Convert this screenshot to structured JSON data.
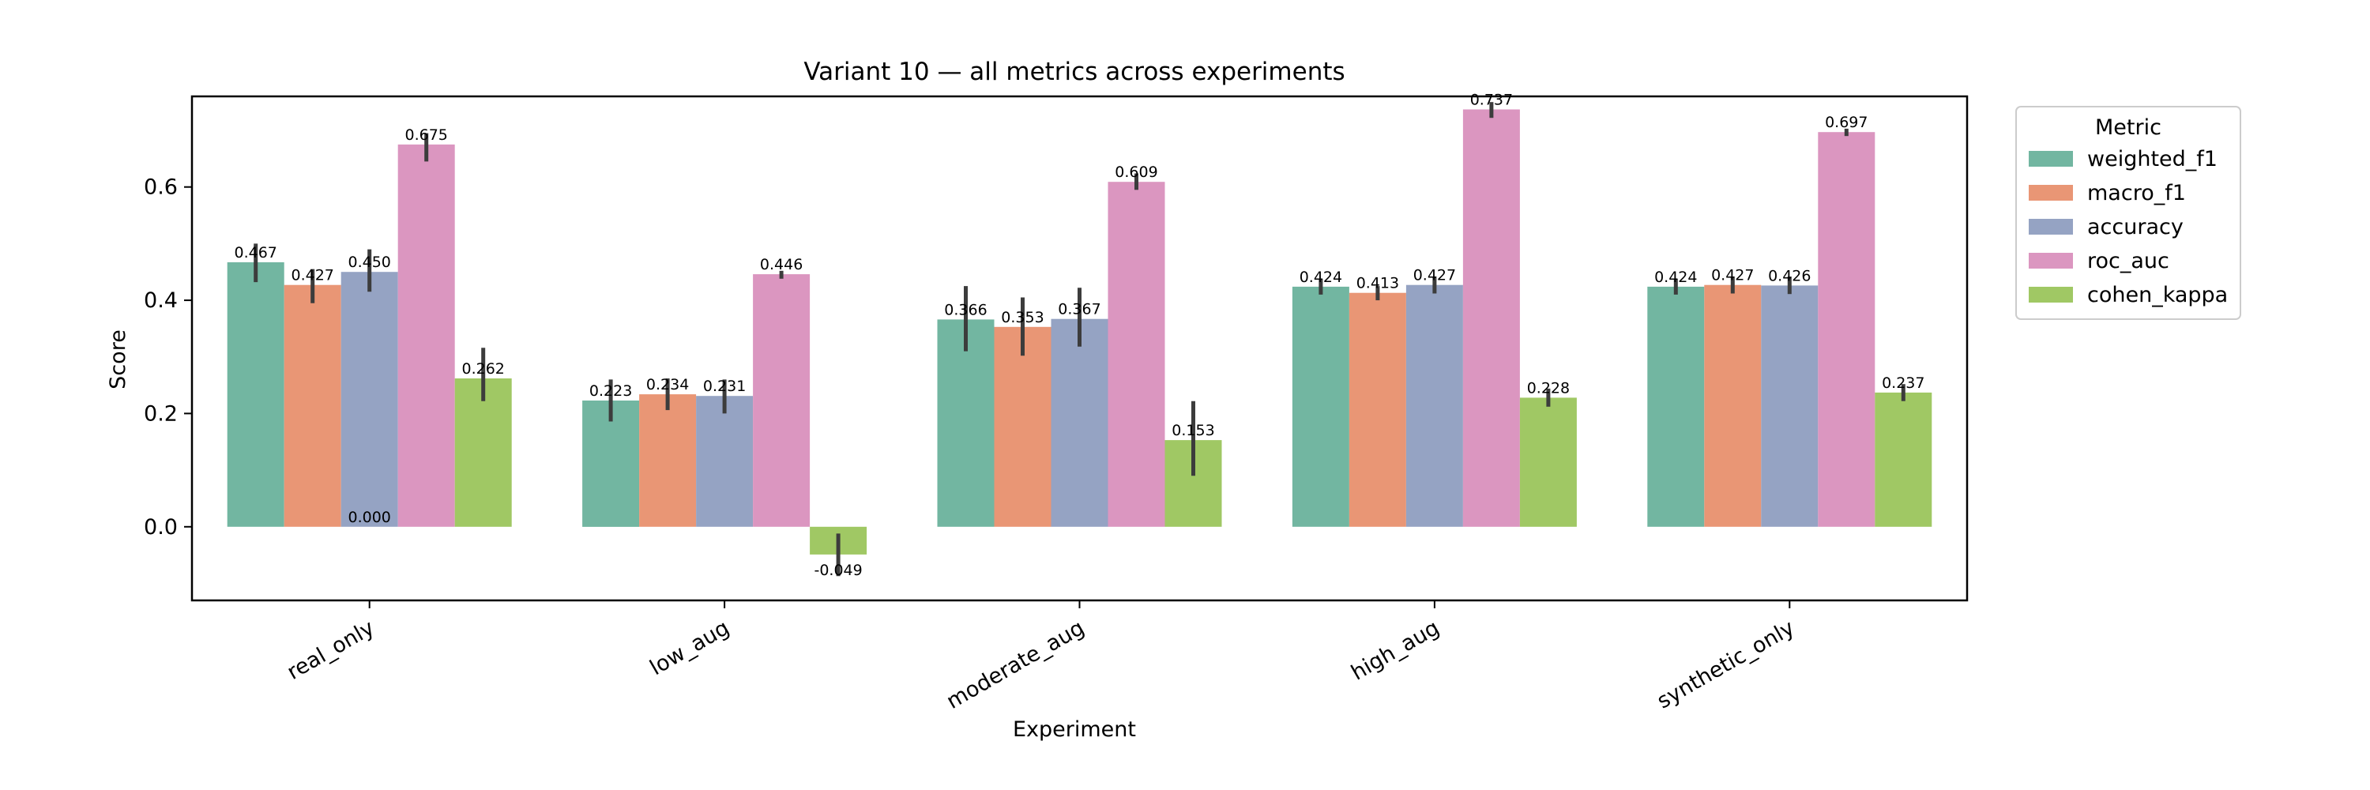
{
  "chart_data": {
    "type": "bar",
    "title": "Variant 10 — all metrics across experiments",
    "xlabel": "Experiment",
    "ylabel": "Score",
    "ylim": [
      -0.13,
      0.76
    ],
    "yticks": [
      "0.0",
      "0.2",
      "0.4",
      "0.6"
    ],
    "ytick_values": [
      0.0,
      0.2,
      0.4,
      0.6
    ],
    "grid": false,
    "legend_title": "Metric",
    "legend_placement": "outside upper right",
    "categories": [
      "real_only",
      "low_aug",
      "moderate_aug",
      "high_aug",
      "synthetic_only"
    ],
    "series": [
      {
        "name": "weighted_f1",
        "color": "#72b6a1",
        "values": [
          0.467,
          0.223,
          0.366,
          0.424,
          0.424
        ],
        "labels": [
          "0.467",
          "0.223",
          "0.366",
          "0.424",
          "0.424"
        ],
        "err_low": [
          0.432,
          0.186,
          0.31,
          0.41,
          0.41
        ],
        "err_high": [
          0.5,
          0.26,
          0.425,
          0.438,
          0.438
        ]
      },
      {
        "name": "macro_f1",
        "color": "#e99675",
        "values": [
          0.427,
          0.234,
          0.353,
          0.413,
          0.427
        ],
        "labels": [
          "0.427",
          "0.234",
          "0.353",
          "0.413",
          "0.427"
        ],
        "err_low": [
          0.395,
          0.206,
          0.302,
          0.4,
          0.412
        ],
        "err_high": [
          0.455,
          0.262,
          0.405,
          0.425,
          0.442
        ]
      },
      {
        "name": "accuracy",
        "color": "#95a3c3",
        "values": [
          0.45,
          0.231,
          0.367,
          0.427,
          0.426
        ],
        "labels": [
          "0.450",
          "0.231",
          "0.367",
          "0.427",
          "0.426"
        ],
        "err_low": [
          0.415,
          0.2,
          0.318,
          0.412,
          0.411
        ],
        "err_high": [
          0.49,
          0.26,
          0.422,
          0.442,
          0.442
        ],
        "extra_labels": [
          "0.000",
          "",
          "",
          "",
          ""
        ]
      },
      {
        "name": "roc_auc",
        "color": "#db96c0",
        "values": [
          0.675,
          0.446,
          0.609,
          0.737,
          0.697
        ],
        "labels": [
          "0.675",
          "0.446",
          "0.609",
          "0.737",
          "0.697"
        ],
        "err_low": [
          0.645,
          0.438,
          0.595,
          0.722,
          0.69
        ],
        "err_high": [
          0.695,
          0.452,
          0.624,
          0.75,
          0.703
        ]
      },
      {
        "name": "cohen_kappa",
        "color": "#a0c864",
        "values": [
          0.262,
          -0.049,
          0.153,
          0.228,
          0.237
        ],
        "labels": [
          "0.262",
          "-0.049",
          "0.153",
          "0.228",
          "0.237"
        ],
        "err_low": [
          0.222,
          -0.087,
          0.09,
          0.212,
          0.222
        ],
        "err_high": [
          0.316,
          -0.012,
          0.222,
          0.244,
          0.252
        ]
      }
    ]
  }
}
